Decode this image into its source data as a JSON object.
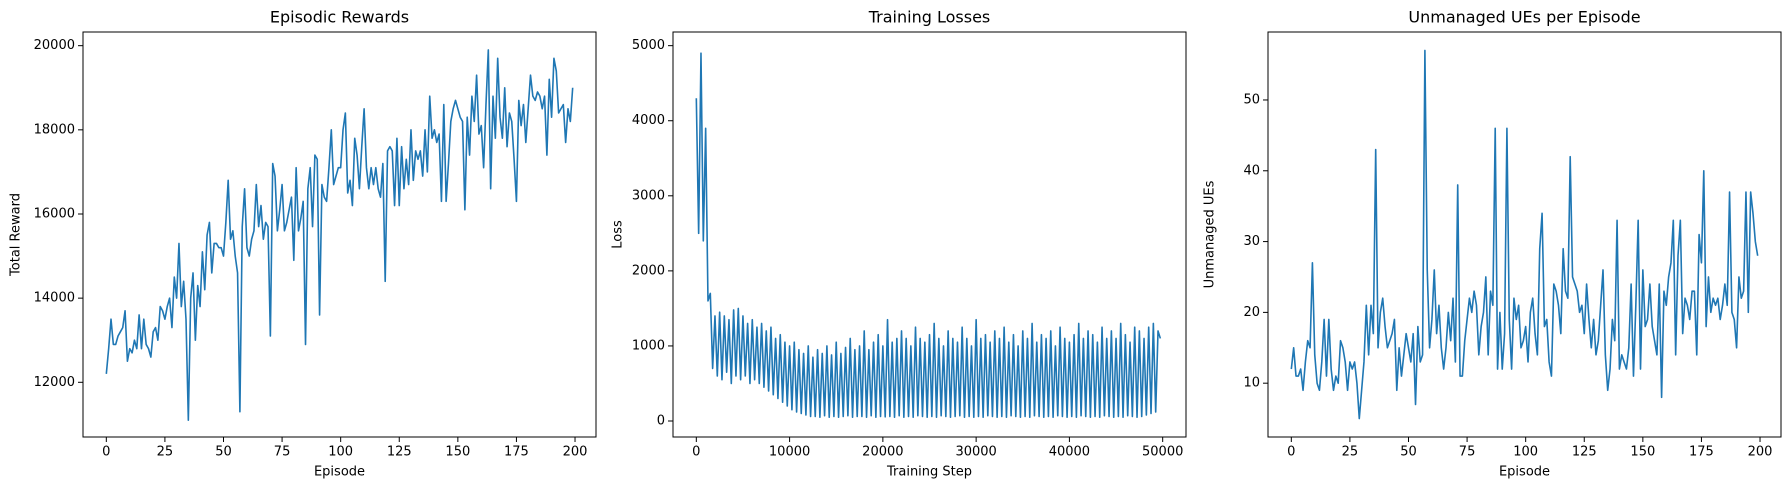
{
  "chart_data": [
    {
      "type": "line",
      "title": "Episodic Rewards",
      "x_label": "Episode",
      "y_label": "Total Reward",
      "color": "#1f77b4",
      "x": [
        0,
        1,
        2,
        3,
        4,
        5,
        6,
        7,
        8,
        9,
        10,
        11,
        12,
        13,
        14,
        15,
        16,
        17,
        18,
        19,
        20,
        21,
        22,
        23,
        24,
        25,
        26,
        27,
        28,
        29,
        30,
        31,
        32,
        33,
        34,
        35,
        36,
        37,
        38,
        39,
        40,
        41,
        42,
        43,
        44,
        45,
        46,
        47,
        48,
        49,
        50,
        51,
        52,
        53,
        54,
        55,
        56,
        57,
        58,
        59,
        60,
        61,
        62,
        63,
        64,
        65,
        66,
        67,
        68,
        69,
        70,
        71,
        72,
        73,
        74,
        75,
        76,
        77,
        78,
        79,
        80,
        81,
        82,
        83,
        84,
        85,
        86,
        87,
        88,
        89,
        90,
        91,
        92,
        93,
        94,
        95,
        96,
        97,
        98,
        99,
        100,
        101,
        102,
        103,
        104,
        105,
        106,
        107,
        108,
        109,
        110,
        111,
        112,
        113,
        114,
        115,
        116,
        117,
        118,
        119,
        120,
        121,
        122,
        123,
        124,
        125,
        126,
        127,
        128,
        129,
        130,
        131,
        132,
        133,
        134,
        135,
        136,
        137,
        138,
        139,
        140,
        141,
        142,
        143,
        144,
        145,
        146,
        147,
        148,
        149,
        150,
        151,
        152,
        153,
        154,
        155,
        156,
        157,
        158,
        159,
        160,
        161,
        162,
        163,
        164,
        165,
        166,
        167,
        168,
        169,
        170,
        171,
        172,
        173,
        174,
        175,
        176,
        177,
        178,
        179,
        180,
        181,
        182,
        183,
        184,
        185,
        186,
        187,
        188,
        189,
        190,
        191,
        192,
        193,
        194,
        195,
        196,
        197,
        198,
        199
      ],
      "values": [
        12200,
        12800,
        13500,
        12900,
        12900,
        13100,
        13200,
        13300,
        13700,
        12500,
        12800,
        12700,
        13000,
        12800,
        13600,
        12800,
        13500,
        12900,
        12800,
        12600,
        13200,
        13300,
        13000,
        13800,
        13700,
        13500,
        13800,
        14000,
        13300,
        14500,
        14000,
        15300,
        13800,
        14400,
        13500,
        11100,
        14000,
        14600,
        13000,
        14300,
        13800,
        15100,
        14200,
        15500,
        15800,
        14600,
        15300,
        15300,
        15200,
        15200,
        15000,
        15800,
        16800,
        15400,
        15600,
        15000,
        14600,
        11300,
        15700,
        16600,
        15200,
        15000,
        15400,
        15600,
        16700,
        15700,
        16200,
        15400,
        15800,
        15700,
        13100,
        17200,
        16900,
        15600,
        16100,
        16700,
        15600,
        15800,
        16100,
        16400,
        14900,
        17100,
        15600,
        15900,
        16300,
        12900,
        16600,
        17100,
        15700,
        17400,
        17300,
        13600,
        16700,
        16400,
        16300,
        17100,
        18000,
        16700,
        16900,
        17100,
        17100,
        18000,
        18400,
        16500,
        16800,
        16200,
        17800,
        17400,
        16600,
        17600,
        18500,
        17100,
        16600,
        17100,
        16700,
        17100,
        16600,
        16400,
        17200,
        14400,
        17500,
        17600,
        17500,
        16200,
        17800,
        16200,
        17600,
        16600,
        17300,
        16700,
        18000,
        16800,
        17500,
        17300,
        17500,
        16900,
        18000,
        17000,
        18800,
        17800,
        18000,
        17700,
        17900,
        16300,
        18600,
        16300,
        17200,
        18200,
        18500,
        18700,
        18500,
        18300,
        18200,
        16100,
        18300,
        17400,
        18800,
        18200,
        19300,
        17900,
        18100,
        17100,
        18600,
        19900,
        16600,
        18800,
        17800,
        19700,
        18300,
        17800,
        19000,
        17600,
        18400,
        18200,
        17300,
        16300,
        18700,
        18100,
        18600,
        17700,
        18500,
        19300,
        18800,
        18700,
        18900,
        18800,
        18500,
        18800,
        17400,
        19200,
        18300,
        19700,
        19400,
        18400,
        18500,
        18600,
        17700,
        18500,
        18200,
        19000
      ],
      "xlim": [
        -9.95,
        208.95
      ],
      "xticks": [
        0,
        25,
        50,
        75,
        100,
        125,
        150,
        175,
        200
      ],
      "ylim": [
        10700,
        20325
      ],
      "yticks": [
        12000,
        14000,
        16000,
        18000,
        20000
      ]
    },
    {
      "type": "line",
      "title": "Training Losses",
      "x_label": "Training Step",
      "y_label": "Loss",
      "color": "#1f77b4",
      "x": [
        0,
        250,
        500,
        750,
        1000,
        1250,
        1500,
        1750,
        2000,
        2250,
        2500,
        2750,
        3000,
        3250,
        3500,
        3750,
        4000,
        4250,
        4500,
        4750,
        5000,
        5250,
        5500,
        5750,
        6000,
        6250,
        6500,
        6750,
        7000,
        7250,
        7500,
        7750,
        8000,
        8250,
        8500,
        8750,
        9000,
        9250,
        9500,
        9750,
        10000,
        10250,
        10500,
        10750,
        11000,
        11250,
        11500,
        11750,
        12000,
        12250,
        12500,
        12750,
        13000,
        13250,
        13500,
        13750,
        14000,
        14250,
        14500,
        14750,
        15000,
        15250,
        15500,
        15750,
        16000,
        16250,
        16500,
        16750,
        17000,
        17250,
        17500,
        17750,
        18000,
        18250,
        18500,
        18750,
        19000,
        19250,
        19500,
        19750,
        20000,
        20250,
        20500,
        20750,
        21000,
        21250,
        21500,
        21750,
        22000,
        22250,
        22500,
        22750,
        23000,
        23250,
        23500,
        23750,
        24000,
        24250,
        24500,
        24750,
        25000,
        25250,
        25500,
        25750,
        26000,
        26250,
        26500,
        26750,
        27000,
        27250,
        27500,
        27750,
        28000,
        28250,
        28500,
        28750,
        29000,
        29250,
        29500,
        29750,
        30000,
        30250,
        30500,
        30750,
        31000,
        31250,
        31500,
        31750,
        32000,
        32250,
        32500,
        32750,
        33000,
        33250,
        33500,
        33750,
        34000,
        34250,
        34500,
        34750,
        35000,
        35250,
        35500,
        35750,
        36000,
        36250,
        36500,
        36750,
        37000,
        37250,
        37500,
        37750,
        38000,
        38250,
        38500,
        38750,
        39000,
        39250,
        39500,
        39750,
        40000,
        40250,
        40500,
        40750,
        41000,
        41250,
        41500,
        41750,
        42000,
        42250,
        42500,
        42750,
        43000,
        43250,
        43500,
        43750,
        44000,
        44250,
        44500,
        44750,
        45000,
        45250,
        45500,
        45750,
        46000,
        46250,
        46500,
        46750,
        47000,
        47250,
        47500,
        47750,
        48000,
        48250,
        48500,
        48750,
        49000,
        49250,
        49500,
        49750
      ],
      "values": [
        4300,
        2500,
        4900,
        2400,
        3900,
        1600,
        1700,
        700,
        1400,
        600,
        1450,
        550,
        1400,
        650,
        1350,
        500,
        1480,
        600,
        1500,
        550,
        1400,
        600,
        1300,
        500,
        1350,
        550,
        1250,
        500,
        1300,
        450,
        1200,
        400,
        1250,
        350,
        1100,
        300,
        1150,
        250,
        1050,
        200,
        1000,
        150,
        1050,
        120,
        950,
        100,
        900,
        80,
        1000,
        60,
        850,
        60,
        950,
        50,
        900,
        70,
        1000,
        50,
        880,
        60,
        1050,
        50,
        900,
        60,
        980,
        70,
        1100,
        50,
        950,
        60,
        1000,
        60,
        1200,
        50,
        950,
        70,
        1050,
        50,
        1150,
        60,
        1000,
        55,
        1350,
        60,
        1050,
        50,
        1100,
        70,
        1200,
        50,
        1100,
        60,
        1000,
        50,
        1250,
        70,
        1100,
        60,
        1050,
        50,
        1150,
        60,
        1300,
        50,
        1100,
        70,
        1000,
        60,
        1200,
        50,
        1100,
        60,
        1050,
        70,
        1250,
        50,
        1100,
        60,
        1000,
        50,
        1350,
        60,
        1100,
        50,
        1150,
        70,
        1050,
        60,
        1200,
        50,
        1100,
        60,
        1250,
        50,
        1050,
        70,
        1150,
        60,
        1000,
        50,
        1200,
        60,
        1100,
        50,
        1300,
        70,
        1050,
        60,
        1150,
        50,
        1100,
        60,
        1200,
        50,
        1000,
        70,
        1250,
        60,
        1100,
        50,
        1050,
        60,
        1150,
        50,
        1300,
        70,
        1100,
        60,
        1200,
        50,
        1150,
        60,
        1050,
        50,
        1250,
        70,
        1100,
        60,
        1200,
        50,
        1100,
        60,
        1300,
        50,
        1150,
        70,
        1050,
        60,
        1250,
        50,
        1200,
        60,
        1100,
        80,
        1250,
        100,
        1300,
        120,
        1200,
        1100
      ],
      "xlim": [
        -2500,
        52500
      ],
      "xticks": [
        0,
        10000,
        20000,
        30000,
        40000,
        50000
      ],
      "ylim": [
        -213,
        5182
      ],
      "yticks": [
        0,
        1000,
        2000,
        3000,
        4000,
        5000
      ]
    },
    {
      "type": "line",
      "title": "Unmanaged UEs per Episode",
      "x_label": "Episode",
      "y_label": "Unmanaged UEs",
      "color": "#1f77b4",
      "x": [
        0,
        1,
        2,
        3,
        4,
        5,
        6,
        7,
        8,
        9,
        10,
        11,
        12,
        13,
        14,
        15,
        16,
        17,
        18,
        19,
        20,
        21,
        22,
        23,
        24,
        25,
        26,
        27,
        28,
        29,
        30,
        31,
        32,
        33,
        34,
        35,
        36,
        37,
        38,
        39,
        40,
        41,
        42,
        43,
        44,
        45,
        46,
        47,
        48,
        49,
        50,
        51,
        52,
        53,
        54,
        55,
        56,
        57,
        58,
        59,
        60,
        61,
        62,
        63,
        64,
        65,
        66,
        67,
        68,
        69,
        70,
        71,
        72,
        73,
        74,
        75,
        76,
        77,
        78,
        79,
        80,
        81,
        82,
        83,
        84,
        85,
        86,
        87,
        88,
        89,
        90,
        91,
        92,
        93,
        94,
        95,
        96,
        97,
        98,
        99,
        100,
        101,
        102,
        103,
        104,
        105,
        106,
        107,
        108,
        109,
        110,
        111,
        112,
        113,
        114,
        115,
        116,
        117,
        118,
        119,
        120,
        121,
        122,
        123,
        124,
        125,
        126,
        127,
        128,
        129,
        130,
        131,
        132,
        133,
        134,
        135,
        136,
        137,
        138,
        139,
        140,
        141,
        142,
        143,
        144,
        145,
        146,
        147,
        148,
        149,
        150,
        151,
        152,
        153,
        154,
        155,
        156,
        157,
        158,
        159,
        160,
        161,
        162,
        163,
        164,
        165,
        166,
        167,
        168,
        169,
        170,
        171,
        172,
        173,
        174,
        175,
        176,
        177,
        178,
        179,
        180,
        181,
        182,
        183,
        184,
        185,
        186,
        187,
        188,
        189,
        190,
        191,
        192,
        193,
        194,
        195,
        196,
        197,
        198,
        199
      ],
      "values": [
        12,
        15,
        11,
        11,
        12,
        9,
        13,
        16,
        15,
        27,
        14,
        10,
        9,
        13,
        19,
        11,
        19,
        12,
        9,
        11,
        10,
        16,
        15,
        13,
        9,
        13,
        12,
        13,
        10,
        5,
        9,
        13,
        21,
        14,
        21,
        17,
        43,
        15,
        20,
        22,
        18,
        15,
        16,
        17,
        19,
        9,
        15,
        11,
        14,
        17,
        15,
        13,
        17,
        7,
        18,
        13,
        14,
        57,
        26,
        15,
        19,
        26,
        17,
        21,
        15,
        12,
        15,
        20,
        16,
        22,
        13,
        38,
        11,
        11,
        16,
        19,
        22,
        20,
        23,
        21,
        14,
        18,
        20,
        25,
        14,
        23,
        21,
        46,
        12,
        20,
        12,
        17,
        46,
        19,
        12,
        22,
        19,
        21,
        15,
        16,
        18,
        13,
        20,
        22,
        17,
        14,
        29,
        34,
        18,
        19,
        13,
        11,
        24,
        23,
        21,
        17,
        29,
        23,
        22,
        42,
        25,
        24,
        23,
        20,
        21,
        17,
        24,
        19,
        15,
        19,
        14,
        16,
        21,
        26,
        14,
        9,
        12,
        19,
        16,
        33,
        12,
        14,
        13,
        12,
        15,
        24,
        11,
        21,
        33,
        12,
        26,
        18,
        19,
        24,
        18,
        16,
        14,
        24,
        8,
        23,
        21,
        25,
        27,
        33,
        14,
        28,
        33,
        17,
        22,
        21,
        19,
        23,
        23,
        14,
        31,
        27,
        40,
        18,
        25,
        20,
        22,
        21,
        22,
        19,
        21,
        24,
        21,
        37,
        20,
        19,
        15,
        25,
        22,
        23,
        37,
        20,
        37,
        34,
        30,
        28
      ],
      "xlim": [
        -9.95,
        208.95
      ],
      "xticks": [
        0,
        25,
        50,
        75,
        100,
        125,
        150,
        175,
        200
      ],
      "ylim": [
        2.4,
        59.6
      ],
      "yticks": [
        10,
        20,
        30,
        40,
        50
      ]
    }
  ]
}
